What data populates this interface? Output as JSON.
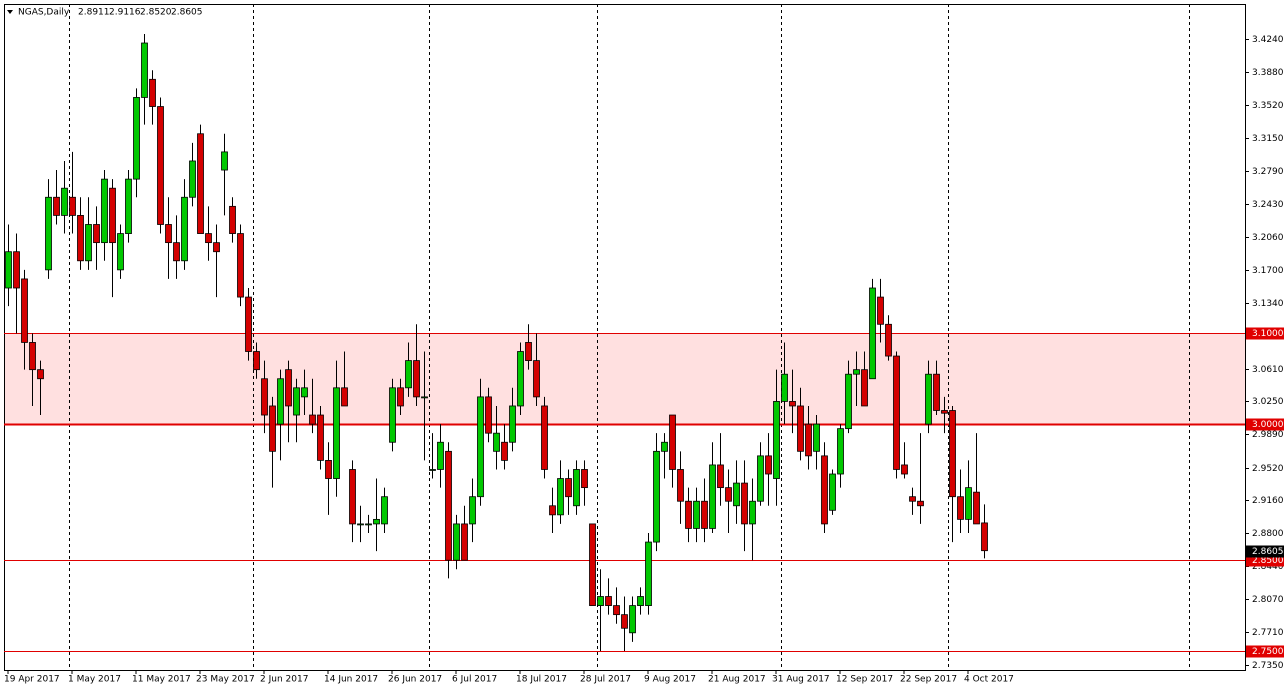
{
  "chart_data": {
    "type": "candlestick",
    "title": "NGAS,Daily",
    "header_values": [
      "2.8911",
      "2.9116",
      "2.8520",
      "2.8605"
    ],
    "up_color": "#00c800",
    "down_color": "#d40000",
    "categories": [
      "19 Apr 2017",
      null,
      null,
      null,
      null,
      null,
      null,
      null,
      "1 May 2017",
      null,
      null,
      null,
      null,
      null,
      null,
      null,
      "11 May 2017",
      null,
      null,
      null,
      null,
      null,
      null,
      null,
      "23 May 2017",
      null,
      null,
      null,
      null,
      null,
      null,
      null,
      "2 Jun 2017",
      null,
      null,
      null,
      null,
      null,
      null,
      null,
      "14 Jun 2017",
      null,
      null,
      null,
      null,
      null,
      null,
      null,
      "26 Jun 2017",
      null,
      null,
      null,
      null,
      null,
      null,
      null,
      "6 Jul 2017",
      null,
      null,
      null,
      null,
      null,
      null,
      null,
      "18 Jul 2017",
      null,
      null,
      null,
      null,
      null,
      null,
      null,
      "28 Jul 2017",
      null,
      null,
      null,
      null,
      null,
      null,
      null,
      "9 Aug 2017",
      null,
      null,
      null,
      null,
      null,
      null,
      null,
      "21 Aug 2017",
      null,
      null,
      null,
      null,
      null,
      null,
      null,
      "31 Aug 2017",
      null,
      null,
      null,
      null,
      null,
      null,
      null,
      "12 Sep 2017",
      null,
      null,
      null,
      null,
      null,
      null,
      null,
      "22 Sep 2017",
      null,
      null,
      null,
      null,
      null,
      null,
      null,
      "4 Oct 2017",
      null,
      null
    ],
    "open": [
      3.15,
      3.19,
      3.16,
      3.09,
      3.06,
      3.17,
      3.25,
      3.23,
      3.25,
      3.23,
      3.18,
      3.22,
      3.2,
      3.26,
      3.17,
      3.21,
      3.27,
      3.36,
      3.38,
      3.35,
      3.22,
      3.2,
      3.18,
      3.25,
      3.32,
      3.21,
      3.2,
      3.28,
      3.24,
      3.21,
      3.14,
      3.08,
      3.05,
      3.02,
      3.0,
      3.06,
      3.01,
      3.03,
      3.01,
      3.01,
      2.96,
      2.94,
      3.04,
      2.95,
      2.89,
      2.89,
      2.89,
      2.89,
      2.98,
      3.04,
      3.04,
      3.07,
      3.03,
      2.95,
      2.95,
      2.97,
      2.85,
      2.89,
      2.89,
      2.92,
      3.03,
      2.97,
      2.98,
      2.98,
      3.02,
      3.09,
      3.07,
      3.02,
      2.91,
      2.9,
      2.94,
      2.91,
      2.95,
      2.89,
      2.8,
      2.81,
      2.8,
      2.79,
      2.77,
      2.8,
      2.8,
      2.87,
      2.97,
      3.01,
      2.95,
      2.915,
      2.885,
      2.915,
      2.885,
      2.955,
      2.93,
      2.91,
      2.935,
      2.89,
      2.915,
      2.965,
      2.94,
      3.025,
      3.025,
      3.02,
      3.0,
      2.97,
      2.965,
      2.905,
      2.945,
      2.995,
      3.055,
      3.06,
      3.05,
      3.14,
      3.11,
      3.075,
      2.955,
      2.92,
      2.915,
      3.0,
      3.055,
      3.015,
      3.015,
      2.92,
      2.895,
      2.925,
      2.8911
    ],
    "high": [
      3.22,
      3.21,
      3.17,
      3.1,
      3.07,
      3.27,
      3.28,
      3.29,
      3.3,
      3.25,
      3.25,
      3.24,
      3.28,
      3.27,
      3.22,
      3.28,
      3.37,
      3.43,
      3.39,
      3.36,
      3.25,
      3.23,
      3.27,
      3.31,
      3.33,
      3.24,
      3.22,
      3.32,
      3.25,
      3.22,
      3.15,
      3.09,
      3.07,
      3.03,
      3.06,
      3.07,
      3.05,
      3.06,
      3.05,
      3.02,
      2.98,
      3.07,
      3.08,
      2.96,
      2.91,
      2.9,
      2.94,
      2.93,
      3.05,
      3.05,
      3.09,
      3.11,
      3.08,
      2.99,
      3.0,
      2.98,
      2.9,
      2.91,
      2.94,
      3.05,
      3.04,
      3.02,
      3.0,
      3.04,
      3.09,
      3.11,
      3.1,
      3.03,
      2.93,
      2.96,
      2.95,
      2.96,
      2.96,
      2.89,
      2.84,
      2.83,
      2.82,
      2.81,
      2.81,
      2.82,
      2.88,
      2.99,
      2.99,
      3.01,
      2.97,
      2.93,
      2.93,
      2.94,
      2.98,
      2.99,
      2.95,
      2.96,
      2.96,
      2.94,
      2.98,
      2.99,
      3.06,
      3.09,
      3.06,
      3.04,
      3.02,
      3.01,
      2.98,
      2.95,
      3.0,
      3.07,
      3.08,
      3.08,
      3.16,
      3.16,
      3.12,
      3.08,
      2.98,
      2.93,
      2.99,
      3.07,
      3.07,
      3.03,
      3.02,
      2.95,
      2.96,
      2.99,
      2.9116
    ],
    "low": [
      3.13,
      3.1,
      3.06,
      3.02,
      3.01,
      3.16,
      3.22,
      3.21,
      3.21,
      3.17,
      3.17,
      3.17,
      3.18,
      3.14,
      3.16,
      3.2,
      3.25,
      3.33,
      3.33,
      3.21,
      3.16,
      3.16,
      3.17,
      3.24,
      3.21,
      3.18,
      3.14,
      3.23,
      3.2,
      3.13,
      3.07,
      3.05,
      2.99,
      2.93,
      2.96,
      2.98,
      2.98,
      3.01,
      2.99,
      2.95,
      2.9,
      2.92,
      3.02,
      2.87,
      2.87,
      2.88,
      2.86,
      2.88,
      2.97,
      3.01,
      3.03,
      3.02,
      2.96,
      2.94,
      2.93,
      2.83,
      2.84,
      2.85,
      2.87,
      2.91,
      2.98,
      2.95,
      2.95,
      2.97,
      3.01,
      3.06,
      3.02,
      2.94,
      2.88,
      2.89,
      2.9,
      2.9,
      2.91,
      2.8,
      2.75,
      2.79,
      2.78,
      2.75,
      2.76,
      2.79,
      2.79,
      2.86,
      2.94,
      2.93,
      2.89,
      2.87,
      2.87,
      2.87,
      2.88,
      2.91,
      2.88,
      2.89,
      2.86,
      2.85,
      2.91,
      2.91,
      2.91,
      3.0,
      2.99,
      2.96,
      2.95,
      2.95,
      2.88,
      2.9,
      2.93,
      2.99,
      3.02,
      3.02,
      3.05,
      3.09,
      3.07,
      2.94,
      2.94,
      2.9,
      2.89,
      2.99,
      3.01,
      2.99,
      2.87,
      2.88,
      2.88,
      2.89,
      2.852
    ],
    "close": [
      3.19,
      3.15,
      3.09,
      3.06,
      3.05,
      3.25,
      3.23,
      3.26,
      3.23,
      3.18,
      3.22,
      3.2,
      3.27,
      3.2,
      3.21,
      3.27,
      3.36,
      3.42,
      3.35,
      3.22,
      3.2,
      3.18,
      3.25,
      3.29,
      3.21,
      3.2,
      3.19,
      3.3,
      3.21,
      3.14,
      3.08,
      3.06,
      3.01,
      2.97,
      3.05,
      3.02,
      3.04,
      3.04,
      3.0,
      2.96,
      2.94,
      3.04,
      3.02,
      2.89,
      2.89,
      2.89,
      2.895,
      2.92,
      3.04,
      3.02,
      3.07,
      3.03,
      3.03,
      2.95,
      2.98,
      2.85,
      2.89,
      2.85,
      2.92,
      3.03,
      2.99,
      2.99,
      2.96,
      3.02,
      3.08,
      3.07,
      3.03,
      2.95,
      2.9,
      2.94,
      2.92,
      2.95,
      2.93,
      2.8,
      2.81,
      2.8,
      2.79,
      2.775,
      2.8,
      2.81,
      2.87,
      2.97,
      2.98,
      2.95,
      2.915,
      2.885,
      2.915,
      2.885,
      2.955,
      2.93,
      2.915,
      2.935,
      2.89,
      2.915,
      2.965,
      2.945,
      3.025,
      3.055,
      3.02,
      2.97,
      2.965,
      3.0,
      2.89,
      2.945,
      2.995,
      3.055,
      3.06,
      3.02,
      3.15,
      3.11,
      3.075,
      2.95,
      2.945,
      2.915,
      2.91,
      3.055,
      3.015,
      3.012,
      2.92,
      2.895,
      2.93,
      2.89,
      2.8605
    ],
    "ylim": [
      2.729,
      3.463
    ],
    "yticks": [
      {
        "value": 3.424,
        "label": "3.4240"
      },
      {
        "value": 3.388,
        "label": "3.3880"
      },
      {
        "value": 3.352,
        "label": "3.3520"
      },
      {
        "value": 3.315,
        "label": "3.3150"
      },
      {
        "value": 3.279,
        "label": "3.2790"
      },
      {
        "value": 3.243,
        "label": "3.2430"
      },
      {
        "value": 3.206,
        "label": "3.2060"
      },
      {
        "value": 3.17,
        "label": "3.1700"
      },
      {
        "value": 3.134,
        "label": "3.1340"
      },
      {
        "value": 3.061,
        "label": "3.0610"
      },
      {
        "value": 3.025,
        "label": "3.0250"
      },
      {
        "value": 2.989,
        "label": "2.9890"
      },
      {
        "value": 2.952,
        "label": "2.9520"
      },
      {
        "value": 2.916,
        "label": "2.9160"
      },
      {
        "value": 2.88,
        "label": "2.8800"
      },
      {
        "value": 2.844,
        "label": "2.8440"
      },
      {
        "value": 2.807,
        "label": "2.8070"
      },
      {
        "value": 2.771,
        "label": "2.7710"
      },
      {
        "value": 2.735,
        "label": "2.7350"
      }
    ],
    "zone": [
      3.0,
      3.1
    ],
    "zone_color": "#ffe0e0",
    "levels": [
      {
        "value": 3.1,
        "label": "3.1000"
      },
      {
        "value": 3.0,
        "label": "3.0000"
      },
      {
        "value": 2.85,
        "label": "2.8500"
      },
      {
        "value": 2.75,
        "label": "2.7500"
      }
    ],
    "level_color": "#e00000",
    "current_price": {
      "value": 2.8605,
      "label": "2.8605"
    }
  }
}
